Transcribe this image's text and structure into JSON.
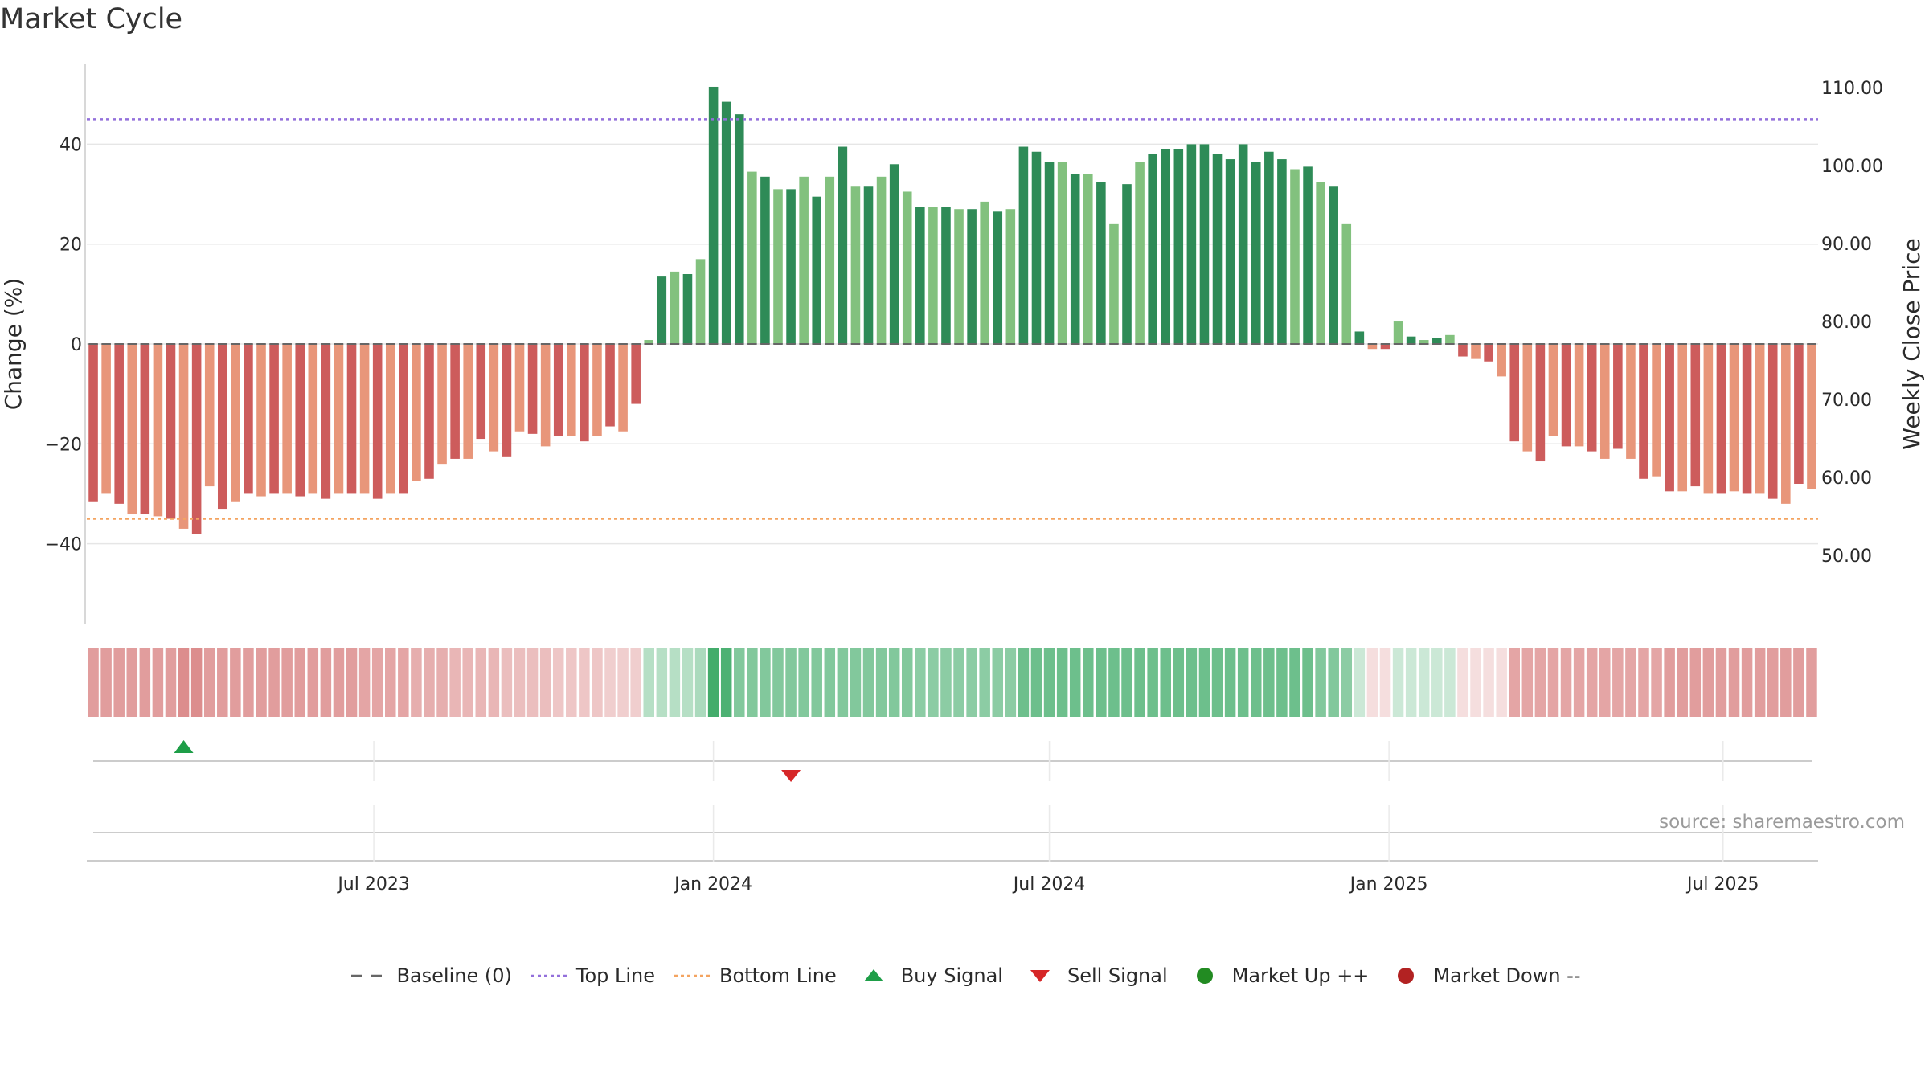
{
  "chart_data": {
    "type": "bar",
    "title": "Market Cycle",
    "source": "source: sharemaestro.com",
    "ylabel_left": "Change (%)",
    "ylabel_right": "Weekly Close Price",
    "ylim_left": [
      -56,
      56
    ],
    "ylim_right": [
      41.25,
      113.0
    ],
    "yticks_left": [
      {
        "v": 40,
        "label": "40"
      },
      {
        "v": 20,
        "label": "20"
      },
      {
        "v": 0,
        "label": "0"
      },
      {
        "v": -20,
        "label": "−20"
      },
      {
        "v": -40,
        "label": "−40"
      }
    ],
    "yticks_right": [
      "110.00",
      "100.00",
      "90.00",
      "80.00",
      "70.00",
      "60.00",
      "50.00"
    ],
    "x_start": "2023-01-30",
    "x_step_weeks": 1,
    "xticks": [
      {
        "label": "Jul 2023",
        "date": "2023-07-01"
      },
      {
        "label": "Jan 2024",
        "date": "2024-01-01"
      },
      {
        "label": "Jul 2024",
        "date": "2024-07-01"
      },
      {
        "label": "Jan 2025",
        "date": "2025-01-01"
      },
      {
        "label": "Jul 2025",
        "date": "2025-07-01"
      }
    ],
    "top_line": 45,
    "bottom_line": -35,
    "baseline": 0,
    "values": [
      -31.5,
      -30,
      -32,
      -34,
      -34,
      -34.5,
      -35,
      -37,
      -38,
      -28.5,
      -33,
      -31.5,
      -30,
      -30.5,
      -30,
      -30,
      -30.5,
      -30,
      -31,
      -30,
      -30,
      -30,
      -31,
      -30,
      -30,
      -27.5,
      -27,
      -24,
      -23,
      -23,
      -19,
      -21.5,
      -22.5,
      -17.5,
      -18,
      -20.5,
      -18.5,
      -18.5,
      -19.5,
      -18.5,
      -16.5,
      -17.5,
      -12,
      0.8,
      13.5,
      14.5,
      14,
      17,
      51.5,
      48.5,
      46,
      34.5,
      33.5,
      31,
      31,
      33.5,
      29.5,
      33.5,
      39.5,
      31.5,
      31.5,
      33.5,
      36,
      30.5,
      27.5,
      27.5,
      27.5,
      27,
      27,
      28.5,
      26.5,
      27,
      39.5,
      38.5,
      36.5,
      36.5,
      34,
      34,
      32.5,
      24,
      32,
      36.5,
      38,
      39,
      39,
      40,
      40,
      38,
      37,
      40,
      36.5,
      38.5,
      37,
      35,
      35.5,
      32.5,
      31.5,
      24,
      2.5,
      -1,
      -1,
      4.5,
      1.5,
      0.8,
      1.2,
      1.8,
      -2.5,
      -3,
      -3.5,
      -6.5,
      -19.5,
      -21.5,
      -23.5,
      -18.5,
      -20.5,
      -20.5,
      -21.5,
      -23,
      -21,
      -23,
      -27,
      -26.5,
      -29.5,
      -29.5,
      -28.5,
      -30,
      -30,
      -29.5,
      -30,
      -30,
      -31,
      -32,
      -28,
      -29
    ],
    "strip_levels": [
      -0.6,
      -0.6,
      -0.6,
      -0.6,
      -0.6,
      -0.6,
      -0.6,
      -0.7,
      -0.7,
      -0.6,
      -0.6,
      -0.6,
      -0.6,
      -0.6,
      -0.6,
      -0.6,
      -0.6,
      -0.6,
      -0.6,
      -0.6,
      -0.6,
      -0.55,
      -0.55,
      -0.55,
      -0.55,
      -0.5,
      -0.5,
      -0.5,
      -0.45,
      -0.45,
      -0.45,
      -0.45,
      -0.4,
      -0.4,
      -0.4,
      -0.4,
      -0.35,
      -0.35,
      -0.35,
      -0.35,
      -0.3,
      -0.3,
      -0.3,
      0.35,
      0.35,
      0.35,
      0.35,
      0.4,
      0.9,
      0.85,
      0.6,
      0.6,
      0.6,
      0.6,
      0.6,
      0.6,
      0.6,
      0.6,
      0.6,
      0.6,
      0.6,
      0.6,
      0.6,
      0.6,
      0.55,
      0.55,
      0.55,
      0.55,
      0.55,
      0.55,
      0.55,
      0.55,
      0.7,
      0.7,
      0.7,
      0.7,
      0.7,
      0.7,
      0.7,
      0.7,
      0.7,
      0.7,
      0.7,
      0.7,
      0.7,
      0.7,
      0.7,
      0.7,
      0.7,
      0.7,
      0.7,
      0.7,
      0.7,
      0.7,
      0.7,
      0.6,
      0.6,
      0.55,
      0.25,
      -0.2,
      -0.2,
      0.25,
      0.25,
      0.25,
      0.25,
      0.25,
      -0.2,
      -0.2,
      -0.2,
      -0.2,
      -0.55,
      -0.55,
      -0.55,
      -0.55,
      -0.55,
      -0.55,
      -0.55,
      -0.55,
      -0.55,
      -0.55,
      -0.55,
      -0.55,
      -0.6,
      -0.6,
      -0.6,
      -0.6,
      -0.6,
      -0.6,
      -0.6,
      -0.6,
      -0.6,
      -0.6,
      -0.6,
      -0.6
    ],
    "signals": [
      {
        "type": "buy",
        "date": "2023-03-20",
        "label": "Buy Signal"
      },
      {
        "type": "sell",
        "date": "2024-02-12",
        "label": "Sell Signal"
      }
    ],
    "colors": {
      "neg_dark": "#cd5c5c",
      "neg_light": "#e8967a",
      "pos_dark": "#2e8b57",
      "pos_light": "#82c17e",
      "top_line": "#9370db",
      "bottom_line": "#f4a460",
      "buy": "#1e9e48",
      "sell": "#d62728",
      "up": "#228b22",
      "down": "#b22222",
      "baseline": "#666666"
    },
    "legend": [
      {
        "label": "Baseline (0)",
        "symbol": "dash"
      },
      {
        "label": "Top Line",
        "symbol": "dot-purple"
      },
      {
        "label": "Bottom Line",
        "symbol": "dot-orange"
      },
      {
        "label": "Buy Signal",
        "symbol": "tri-up"
      },
      {
        "label": "Sell Signal",
        "symbol": "tri-down"
      },
      {
        "label": "Market Up ++",
        "symbol": "circle-green"
      },
      {
        "label": "Market Down --",
        "symbol": "circle-red"
      }
    ]
  }
}
